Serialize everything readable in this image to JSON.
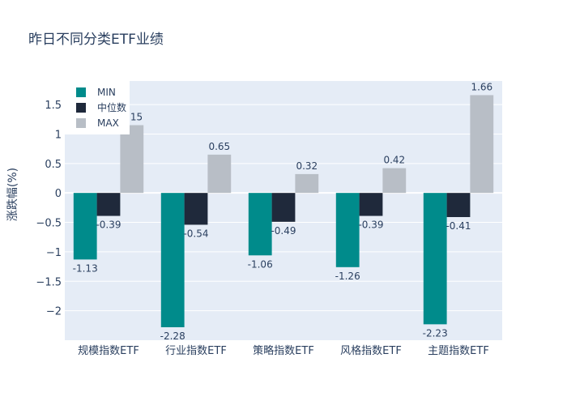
{
  "chart_data": {
    "type": "bar",
    "title": "昨日不同分类ETF业绩",
    "ylabel": "涨跌幅(%)",
    "xlabel": "",
    "categories": [
      "规模指数ETF",
      "行业指数ETF",
      "策略指数ETF",
      "风格指数ETF",
      "主题指数ETF"
    ],
    "series": [
      {
        "name": "MIN",
        "color": "#008b8b",
        "values": [
          -1.13,
          -2.28,
          -1.06,
          -1.26,
          -2.23
        ]
      },
      {
        "name": "中位数",
        "color": "#1f293b",
        "values": [
          -0.39,
          -0.54,
          -0.49,
          -0.39,
          -0.41
        ]
      },
      {
        "name": "MAX",
        "color": "#b8bec6",
        "values": [
          1.15,
          0.65,
          0.32,
          0.42,
          1.66
        ]
      }
    ],
    "ylim": [
      -2.5,
      1.9
    ],
    "yticks": [
      1.5,
      1,
      0.5,
      0,
      -0.5,
      -1,
      -1.5,
      -2
    ],
    "ytick_labels": [
      "1.5",
      "1",
      "0.5",
      "0",
      "−0.5",
      "−1",
      "−1.5",
      "−2"
    ],
    "grid": true,
    "legend_position": "top-left",
    "plot_background": "#e5ecf6"
  }
}
